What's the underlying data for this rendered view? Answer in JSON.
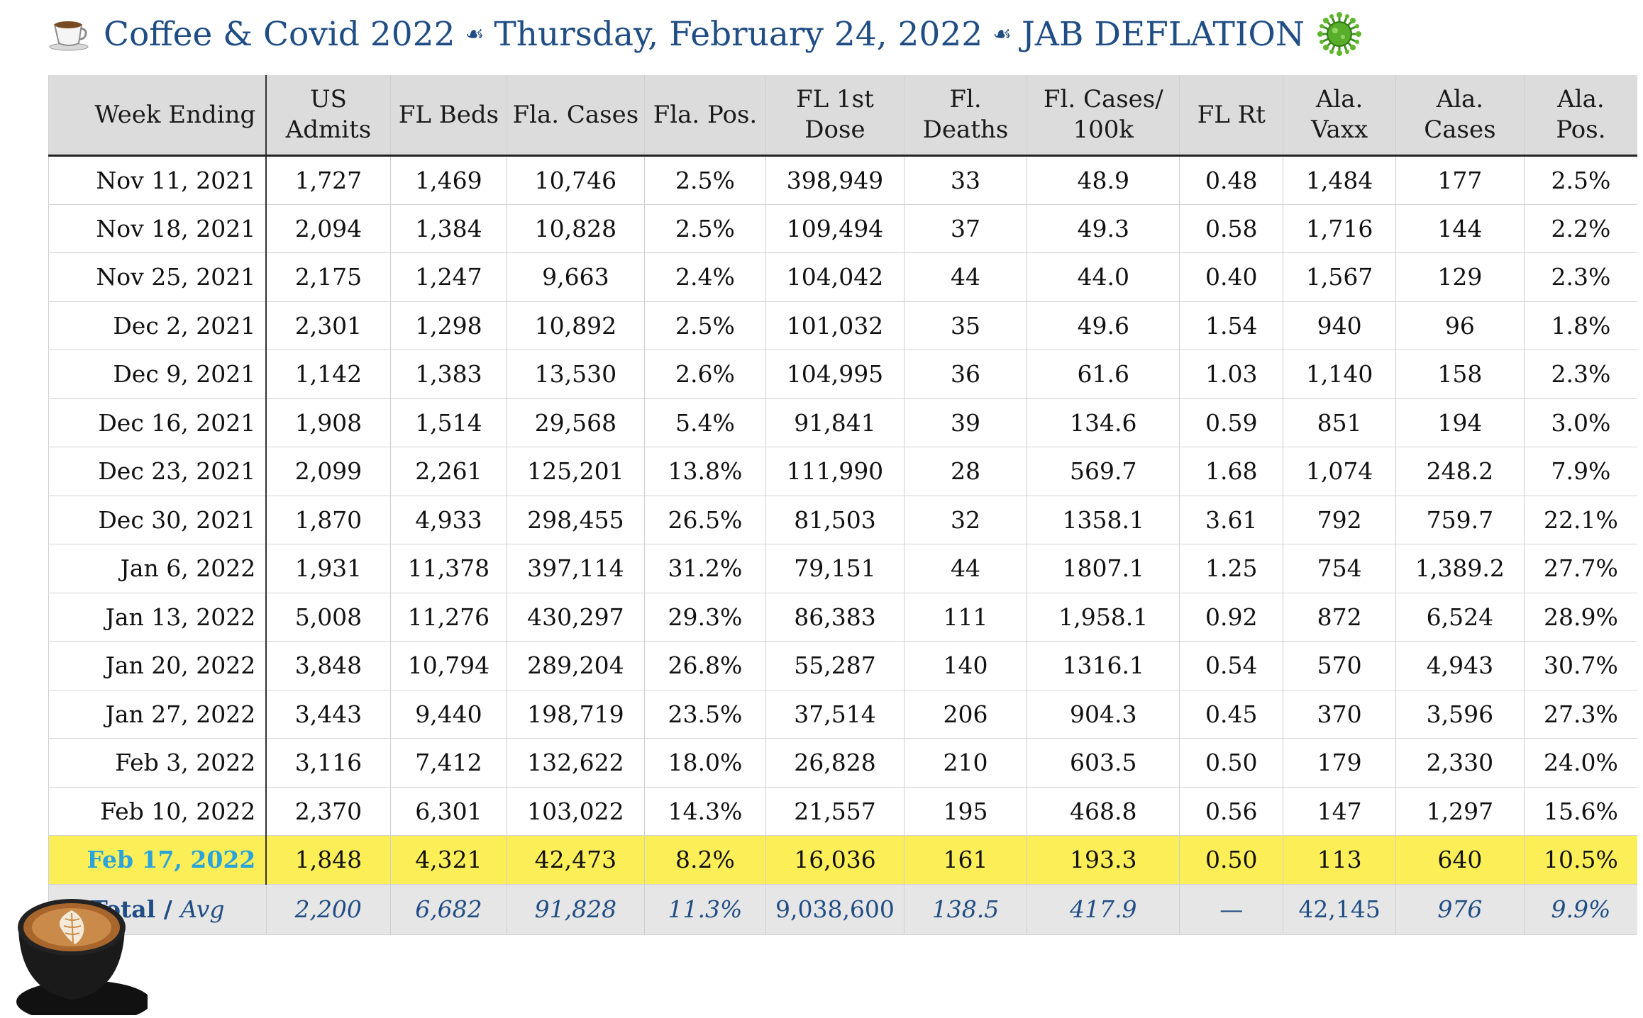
{
  "title": {
    "part1": "Coffee & Covid 2022",
    "part2": "Thursday, February 24, 2022",
    "part3": "JAB DEFLATION",
    "icons": [
      "coffee-cup-icon",
      "fleuron-icon",
      "virus-icon"
    ]
  },
  "table": {
    "headers": [
      "Week Ending",
      "US Admits",
      "FL Beds",
      "Fla. Cases",
      "Fla. Pos.",
      "FL 1st Dose",
      "Fl. Deaths",
      "Fl. Cases/ 100k",
      "FL Rt",
      "Ala. Vaxx",
      "Ala. Cases",
      "Ala. Pos."
    ],
    "rows": [
      [
        "Nov 11, 2021",
        "1,727",
        "1,469",
        "10,746",
        "2.5%",
        "398,949",
        "33",
        "48.9",
        "0.48",
        "1,484",
        "177",
        "2.5%"
      ],
      [
        "Nov 18, 2021",
        "2,094",
        "1,384",
        "10,828",
        "2.5%",
        "109,494",
        "37",
        "49.3",
        "0.58",
        "1,716",
        "144",
        "2.2%"
      ],
      [
        "Nov 25, 2021",
        "2,175",
        "1,247",
        "9,663",
        "2.4%",
        "104,042",
        "44",
        "44.0",
        "0.40",
        "1,567",
        "129",
        "2.3%"
      ],
      [
        "Dec 2, 2021",
        "2,301",
        "1,298",
        "10,892",
        "2.5%",
        "101,032",
        "35",
        "49.6",
        "1.54",
        "940",
        "96",
        "1.8%"
      ],
      [
        "Dec 9, 2021",
        "1,142",
        "1,383",
        "13,530",
        "2.6%",
        "104,995",
        "36",
        "61.6",
        "1.03",
        "1,140",
        "158",
        "2.3%"
      ],
      [
        "Dec 16, 2021",
        "1,908",
        "1,514",
        "29,568",
        "5.4%",
        "91,841",
        "39",
        "134.6",
        "0.59",
        "851",
        "194",
        "3.0%"
      ],
      [
        "Dec 23, 2021",
        "2,099",
        "2,261",
        "125,201",
        "13.8%",
        "111,990",
        "28",
        "569.7",
        "1.68",
        "1,074",
        "248.2",
        "7.9%"
      ],
      [
        "Dec 30, 2021",
        "1,870",
        "4,933",
        "298,455",
        "26.5%",
        "81,503",
        "32",
        "1358.1",
        "3.61",
        "792",
        "759.7",
        "22.1%"
      ],
      [
        "Jan 6, 2022",
        "1,931",
        "11,378",
        "397,114",
        "31.2%",
        "79,151",
        "44",
        "1807.1",
        "1.25",
        "754",
        "1,389.2",
        "27.7%"
      ],
      [
        "Jan 13, 2022",
        "5,008",
        "11,276",
        "430,297",
        "29.3%",
        "86,383",
        "111",
        "1,958.1",
        "0.92",
        "872",
        "6,524",
        "28.9%"
      ],
      [
        "Jan 20, 2022",
        "3,848",
        "10,794",
        "289,204",
        "26.8%",
        "55,287",
        "140",
        "1316.1",
        "0.54",
        "570",
        "4,943",
        "30.7%"
      ],
      [
        "Jan 27, 2022",
        "3,443",
        "9,440",
        "198,719",
        "23.5%",
        "37,514",
        "206",
        "904.3",
        "0.45",
        "370",
        "3,596",
        "27.3%"
      ],
      [
        "Feb 3, 2022",
        "3,116",
        "7,412",
        "132,622",
        "18.0%",
        "26,828",
        "210",
        "603.5",
        "0.50",
        "179",
        "2,330",
        "24.0%"
      ],
      [
        "Feb 10, 2022",
        "2,370",
        "6,301",
        "103,022",
        "14.3%",
        "21,557",
        "195",
        "468.8",
        "0.56",
        "147",
        "1,297",
        "15.6%"
      ],
      [
        "Feb 17, 2022",
        "1,848",
        "4,321",
        "42,473",
        "8.2%",
        "16,036",
        "161",
        "193.3",
        "0.50",
        "113",
        "640",
        "10.5%"
      ]
    ],
    "highlight_row_index": 14,
    "total": {
      "label": "Total",
      "label_sep": " / ",
      "label_avg": "Avg",
      "values": [
        "2,200",
        "6,682",
        "91,828",
        "11.3%",
        "9,038,600",
        "138.5",
        "417.9",
        "—",
        "42,145",
        "976",
        "9.9%"
      ]
    }
  },
  "colors": {
    "title": "#1f4d84",
    "header_bg": "#dcdcdc",
    "highlight_bg": "#fcee57",
    "highlight_date": "#2aa3dd",
    "total_bg": "#e6e6e6",
    "total_text": "#1f4d84"
  },
  "decorations": [
    "latte-cup-icon"
  ]
}
